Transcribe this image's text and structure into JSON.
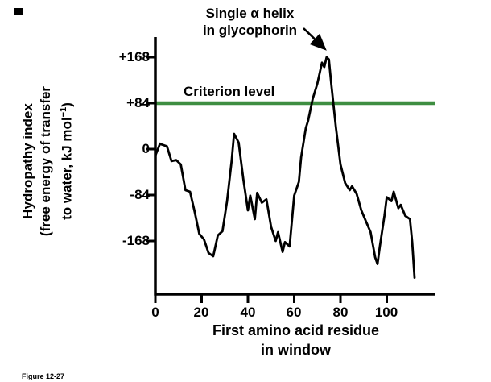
{
  "figure": {
    "caption": "Figure 12-27",
    "annotation_line1": "Single α helix",
    "annotation_line2": "in glycophorin",
    "ylabel_line1": "Hydropathy index",
    "ylabel_line2": "(free energy of transfer",
    "ylabel_line3_pre": "to water, kJ mol",
    "ylabel_line3_sup": "−1",
    "ylabel_line3_post": ")",
    "xlabel_line1": "First amino acid residue",
    "xlabel_line2": "in window"
  },
  "chart_data": {
    "type": "line",
    "title": "",
    "xlabel": "First amino acid residue in window",
    "ylabel": "Hydropathy index (free energy of transfer to water, kJ mol−1)",
    "xlim": [
      0,
      121
    ],
    "ylim": [
      -240,
      185
    ],
    "grid": false,
    "xticks": [
      0,
      20,
      40,
      60,
      80,
      100
    ],
    "yticks": [
      {
        "label": "+168",
        "value": 168
      },
      {
        "label": "+84",
        "value": 84
      },
      {
        "label": "0",
        "value": 0
      },
      {
        "label": "-84",
        "value": -84
      },
      {
        "label": "-168",
        "value": -168
      }
    ],
    "criterion": {
      "label": "Criterion level",
      "value": 84,
      "color": "#3e8e41"
    },
    "annotation": {
      "text": "Single α helix in glycophorin",
      "points_to": {
        "x": 74,
        "y": 168
      }
    },
    "series": [
      {
        "name": "Hydropathy index",
        "color": "#000000",
        "x": [
          0,
          2,
          3,
          5,
          7,
          9,
          11,
          13,
          15,
          17,
          19,
          21,
          23,
          25,
          27,
          29,
          31,
          33,
          34,
          36,
          38,
          40,
          41,
          43,
          44,
          46,
          48,
          50,
          52,
          53,
          55,
          56,
          58,
          60,
          62,
          63,
          65,
          66,
          68,
          70,
          72,
          73,
          74,
          75,
          76,
          78,
          80,
          82,
          84,
          85,
          87,
          89,
          91,
          93,
          95,
          96,
          97,
          99,
          100,
          102,
          103,
          105,
          106,
          108,
          110,
          111,
          112
        ],
        "y": [
          -12,
          10,
          8,
          5,
          -22,
          -20,
          -28,
          -75,
          -78,
          -115,
          -155,
          -165,
          -190,
          -196,
          -158,
          -150,
          -95,
          -20,
          28,
          12,
          -55,
          -112,
          -85,
          -128,
          -80,
          -98,
          -92,
          -142,
          -168,
          -152,
          -188,
          -170,
          -178,
          -85,
          -60,
          -15,
          38,
          52,
          92,
          120,
          158,
          150,
          168,
          164,
          120,
          40,
          -28,
          -62,
          -75,
          -68,
          -82,
          -112,
          -132,
          -152,
          -198,
          -210,
          -178,
          -122,
          -88,
          -95,
          -78,
          -108,
          -102,
          -122,
          -128,
          -170,
          -235
        ]
      }
    ]
  }
}
